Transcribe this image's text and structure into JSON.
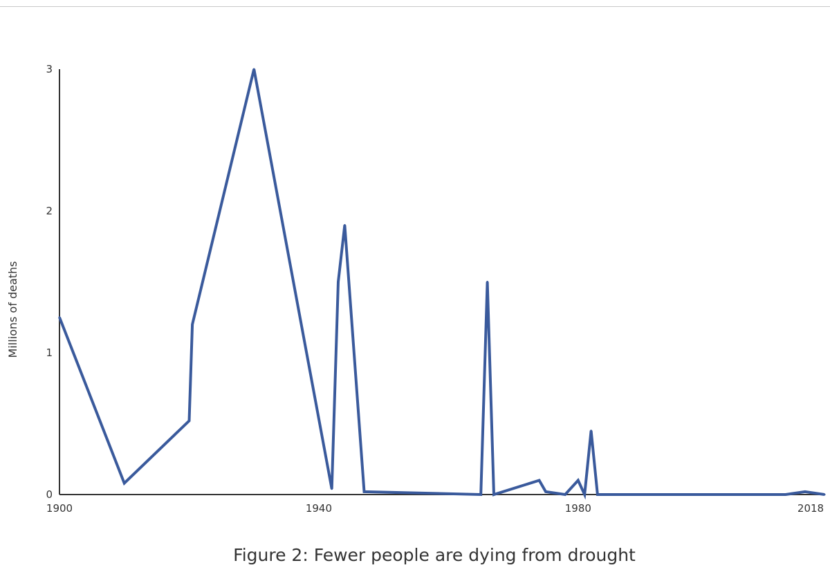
{
  "caption": "Figure 2: Fewer people are dying from drought",
  "chart_data": {
    "type": "line",
    "title": "",
    "xlabel": "",
    "ylabel": "Millions of deaths",
    "xlim": [
      1900,
      2018
    ],
    "ylim": [
      0,
      3
    ],
    "x_ticks": [
      1900,
      1940,
      1980,
      2018
    ],
    "x_tick_labels": [
      "1900",
      "1940",
      "1980",
      "2018"
    ],
    "y_ticks": [
      0,
      1,
      2,
      3
    ],
    "y_tick_labels": [
      "0",
      "1",
      "2",
      "3"
    ],
    "grid": false,
    "legend": "none",
    "series_color": "#3a5a9c",
    "series": [
      {
        "x": [
          1900,
          1910,
          1920,
          1920.5,
          1930,
          1942,
          1943,
          1944,
          1947,
          1965,
          1966,
          1967,
          1974,
          1975,
          1978,
          1980,
          1981,
          1982,
          1983,
          1990,
          2000,
          2010,
          2012,
          2015,
          2018
        ],
        "y": [
          1.25,
          0.08,
          0.52,
          1.2,
          3.0,
          0.04,
          1.5,
          1.9,
          0.02,
          0.0,
          1.5,
          0.0,
          0.1,
          0.02,
          0.0,
          0.1,
          0.0,
          0.45,
          0.0,
          0.0,
          0.0,
          0.0,
          0.0,
          0.02,
          0.0
        ]
      }
    ]
  }
}
